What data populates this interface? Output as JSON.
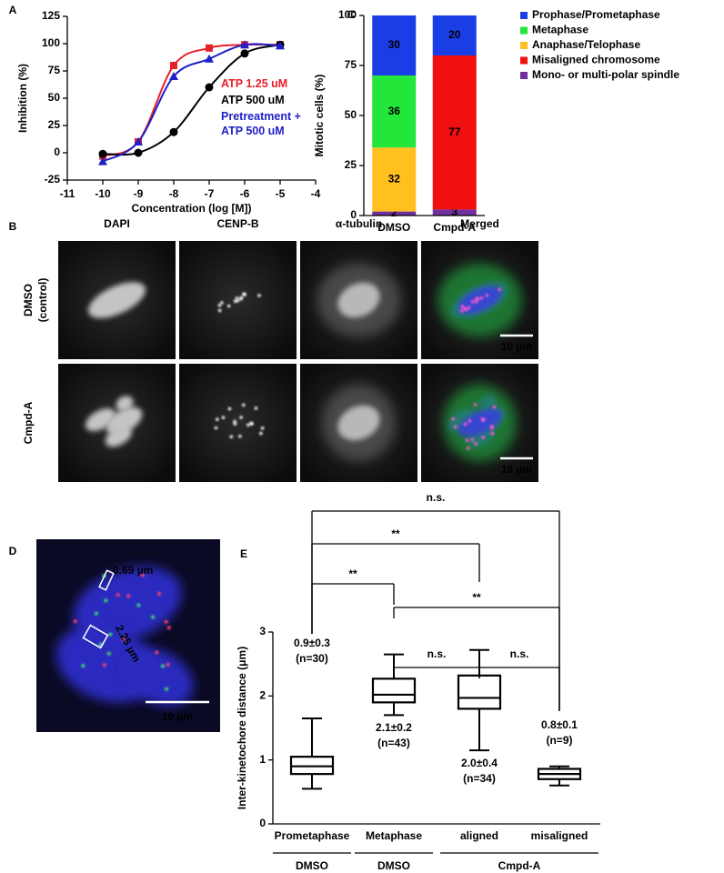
{
  "chart_data": [
    {
      "type": "scatter",
      "panel": "A",
      "xlabel": "Concentration (log [M])",
      "ylabel": "Inhibition (%)",
      "x": [
        -10,
        -9,
        -8,
        -7,
        -6,
        -5
      ],
      "series": [
        {
          "name": "ATP  1.25 uM",
          "color": "#e8202a",
          "marker": "square",
          "values": [
            -3,
            10,
            80,
            96,
            99,
            99
          ]
        },
        {
          "name": "ATP  500 uM",
          "color": "#000000",
          "marker": "circle",
          "values": [
            -1,
            0,
            19,
            60,
            91,
            99
          ]
        },
        {
          "name": "Pretreatment + ATP 500 uM",
          "color": "#2020c8",
          "marker": "triangle",
          "values": [
            -8,
            10,
            70,
            86,
            99,
            98
          ]
        }
      ],
      "xlim": [
        -11,
        -4
      ],
      "xticks": [
        -11,
        -10,
        -9,
        -8,
        -7,
        -6,
        -5,
        -4
      ],
      "ylim": [
        -25,
        125
      ],
      "yticks": [
        -25,
        0,
        25,
        50,
        75,
        100,
        125
      ]
    },
    {
      "type": "bar",
      "stacked": true,
      "panel": "C",
      "ylabel": "Mitotic cells  (%)",
      "categories": [
        "DMSO",
        "Cmpd-A"
      ],
      "series": [
        {
          "name": "Prophase/Prometaphase",
          "color": "#1a3ee6",
          "values": [
            30,
            20
          ]
        },
        {
          "name": "Metaphase",
          "color": "#22e63a",
          "values": [
            36,
            0
          ]
        },
        {
          "name": "Anaphase/Telophase",
          "color": "#ffc020",
          "values": [
            32,
            0
          ]
        },
        {
          "name": "Misaligned chromosome",
          "color": "#f01010",
          "values": [
            0,
            77
          ]
        },
        {
          "name": "Mono- or multi-polar spindle",
          "color": "#7030a0",
          "values": [
            2,
            3
          ]
        }
      ],
      "ylim": [
        0,
        100
      ],
      "yticks": [
        0,
        25,
        50,
        75,
        100
      ]
    },
    {
      "type": "box",
      "panel": "E",
      "ylabel": "Inter-kinetochore distance (μm)",
      "categories": [
        "Prometaphase",
        "Metaphase",
        "aligned",
        "misaligned"
      ],
      "stats": [
        {
          "min": 0.55,
          "q1": 0.78,
          "median": 0.9,
          "q3": 1.05,
          "max": 1.65
        },
        {
          "min": 1.7,
          "q1": 1.9,
          "median": 2.02,
          "q3": 2.27,
          "max": 2.65
        },
        {
          "min": 1.15,
          "q1": 1.8,
          "median": 1.97,
          "q3": 2.32,
          "max": 2.72
        },
        {
          "min": 0.6,
          "q1": 0.7,
          "median": 0.78,
          "q3": 0.86,
          "max": 0.9
        }
      ],
      "annotations": [
        [
          "0.9±0.3",
          "(n=30)"
        ],
        [
          "2.1±0.2",
          "(n=43)"
        ],
        [
          "2.0±0.4",
          "(n=34)"
        ],
        [
          "0.8±0.1",
          "(n=9)"
        ]
      ],
      "groups": [
        {
          "label": "DMSO",
          "categories": [
            "Prometaphase"
          ]
        },
        {
          "label": "DMSO",
          "categories": [
            "Metaphase"
          ]
        },
        {
          "label": "Cmpd-A",
          "categories": [
            "aligned",
            "misaligned"
          ]
        }
      ],
      "comparisons": [
        {
          "categories": [
            "Prometaphase",
            "misaligned"
          ],
          "label": "n.s."
        },
        {
          "categories": [
            "Prometaphase",
            "aligned"
          ],
          "label": "**"
        },
        {
          "categories": [
            "Prometaphase",
            "Metaphase"
          ],
          "label": "**"
        },
        {
          "categories": [
            "Metaphase",
            "misaligned"
          ],
          "label": "**"
        },
        {
          "categories": [
            "Metaphase",
            "aligned"
          ],
          "label": "n.s."
        },
        {
          "categories": [
            "aligned",
            "misaligned"
          ],
          "label": "n.s."
        }
      ],
      "ylim": [
        0,
        3
      ],
      "yticks": [
        0,
        1,
        2,
        3
      ]
    }
  ],
  "images": {
    "panel": "B",
    "columns": [
      {
        "label": "DAPI",
        "color": "#1a1ae6"
      },
      {
        "label": "CENP-B",
        "color": "#e61a1a"
      },
      {
        "label": "α-tubulin",
        "color": "#1ac81a"
      },
      {
        "label": "Merged",
        "colors": [
          "#1a1ae6",
          "#e61a1a",
          "#1ac81a"
        ]
      }
    ],
    "rows": [
      "DMSO (control)",
      "Cmpd-A"
    ],
    "scale_bar": "10 µm"
  },
  "image_d": {
    "panel": "D",
    "measurements": [
      "0.69 µm",
      "2.25 µm"
    ],
    "scale_bar": "10 µm"
  }
}
